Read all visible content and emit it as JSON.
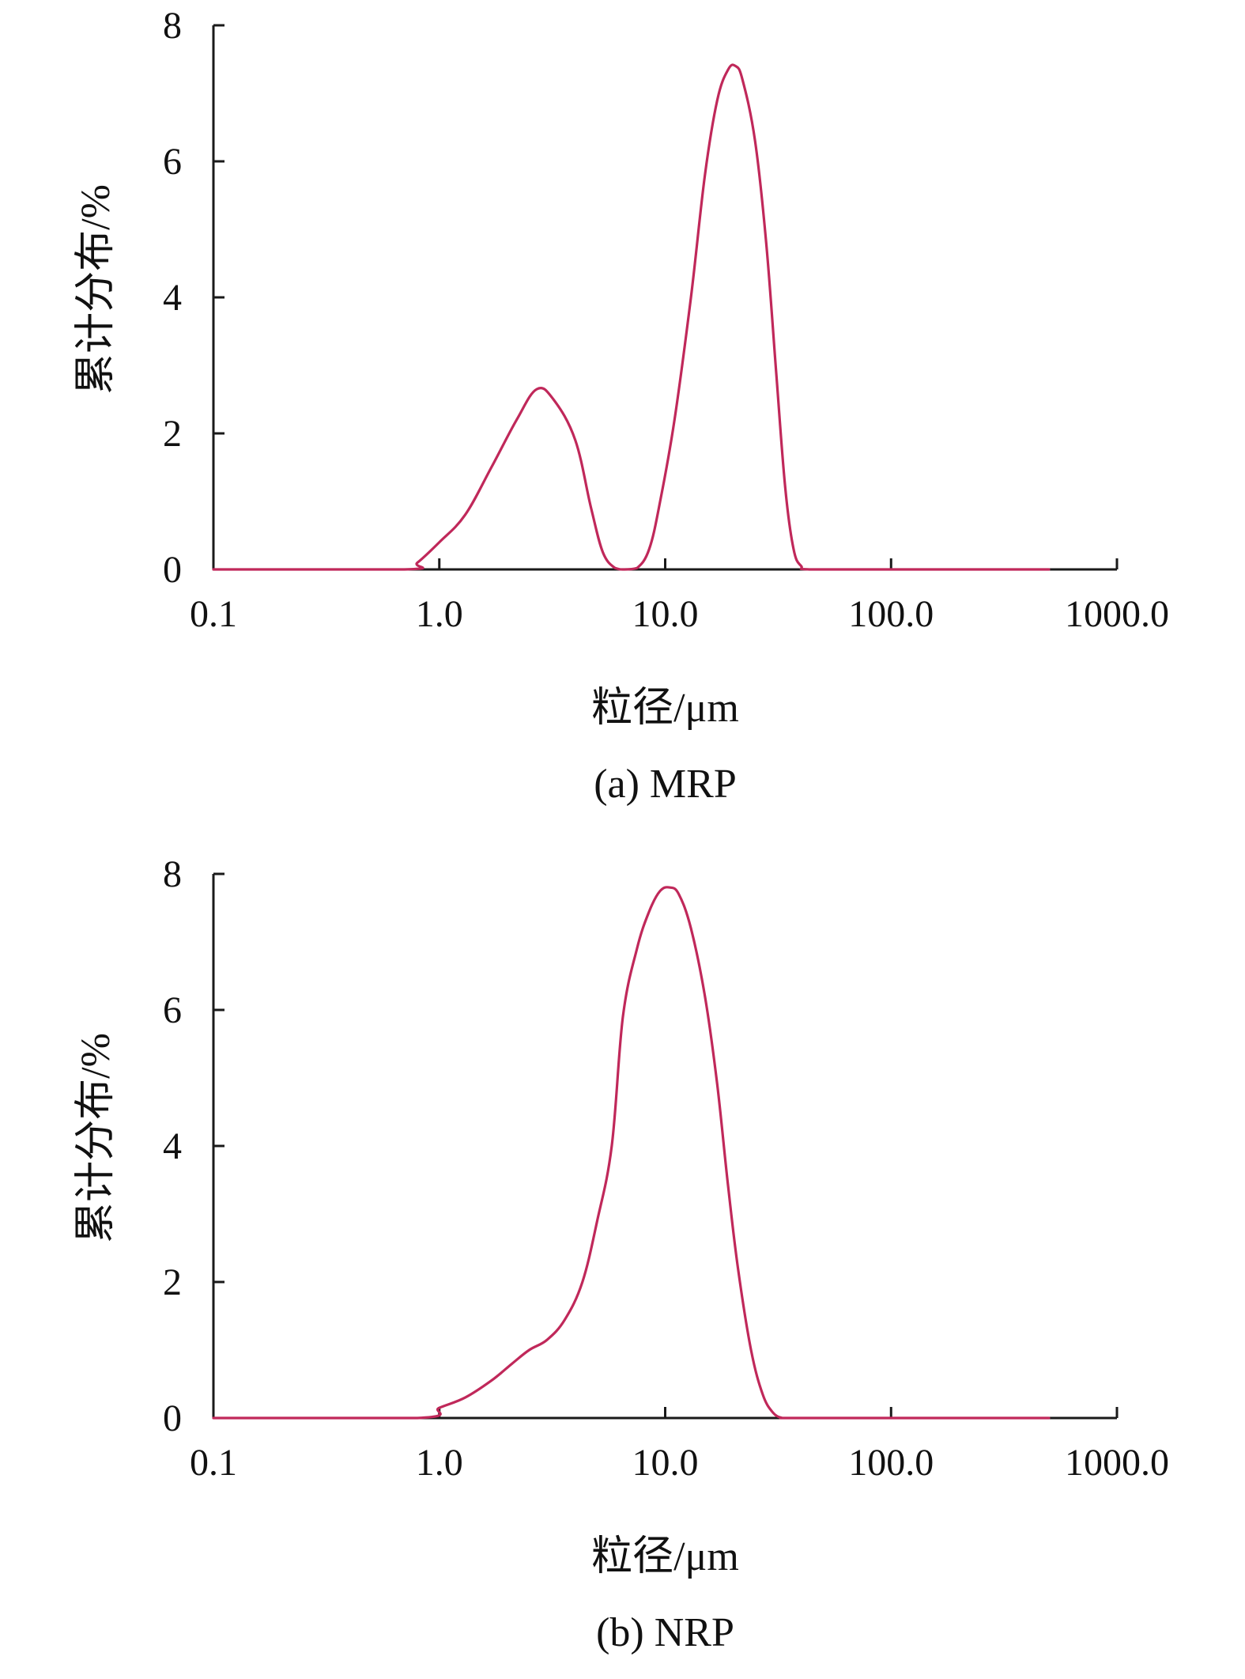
{
  "chart_data": [
    {
      "type": "line",
      "title": "(a) MRP",
      "xlabel": "粒径/μm",
      "ylabel": "累计分布/%",
      "xscale": "log",
      "xlim": [
        0.1,
        1000
      ],
      "ylim": [
        0,
        8
      ],
      "xticks": [
        0.1,
        1,
        10,
        100,
        1000
      ],
      "xtick_labels": [
        "0.1",
        "1.0",
        "10.0",
        "100.0",
        "1000.0"
      ],
      "yticks": [
        0,
        2,
        4,
        6,
        8
      ],
      "ytick_labels": [
        "0",
        "2",
        "4",
        "6",
        "8"
      ],
      "grid": false,
      "color": "#c0285a",
      "series": [
        {
          "x": [
            0.1,
            0.7,
            0.8,
            1.0,
            1.3,
            1.7,
            2.2,
            2.7,
            3.2,
            4.0,
            4.7,
            5.3,
            6.0,
            6.6,
            7.5,
            8.5,
            9.5,
            11,
            13,
            15,
            17,
            19,
            20.5,
            22,
            25,
            28,
            31,
            34,
            37,
            40,
            44,
            100,
            500
          ],
          "y": [
            0,
            0,
            0.1,
            0.4,
            0.8,
            1.5,
            2.2,
            2.65,
            2.5,
            1.9,
            0.9,
            0.25,
            0.02,
            0,
            0.02,
            0.3,
            1.0,
            2.2,
            4.0,
            5.8,
            6.9,
            7.35,
            7.4,
            7.2,
            6.3,
            4.8,
            2.9,
            1.2,
            0.3,
            0.05,
            0,
            0,
            0
          ]
        }
      ]
    },
    {
      "type": "line",
      "title": "(b) NRP",
      "xlabel": "粒径/μm",
      "ylabel": "累计分布/%",
      "xscale": "log",
      "xlim": [
        0.1,
        1000
      ],
      "ylim": [
        0,
        8
      ],
      "xticks": [
        0.1,
        1,
        10,
        100,
        1000
      ],
      "xtick_labels": [
        "0.1",
        "1.0",
        "10.0",
        "100.0",
        "1000.0"
      ],
      "yticks": [
        0,
        2,
        4,
        6,
        8
      ],
      "ytick_labels": [
        "0",
        "2",
        "4",
        "6",
        "8"
      ],
      "grid": false,
      "color": "#c0285a",
      "series": [
        {
          "x": [
            0.1,
            0.8,
            1.0,
            1.3,
            1.7,
            2.1,
            2.5,
            3.0,
            3.6,
            4.3,
            5.0,
            5.8,
            6.5,
            7.5,
            8.5,
            9.5,
            10.5,
            11.5,
            13,
            15,
            17,
            19,
            21,
            24,
            27,
            30,
            33,
            36,
            100,
            500
          ],
          "y": [
            0,
            0,
            0.15,
            0.3,
            0.55,
            0.8,
            1.0,
            1.15,
            1.45,
            2.0,
            2.9,
            4.0,
            5.9,
            6.9,
            7.45,
            7.75,
            7.8,
            7.7,
            7.2,
            6.2,
            4.9,
            3.4,
            2.2,
            1.0,
            0.35,
            0.08,
            0,
            0,
            0,
            0
          ]
        }
      ]
    }
  ]
}
